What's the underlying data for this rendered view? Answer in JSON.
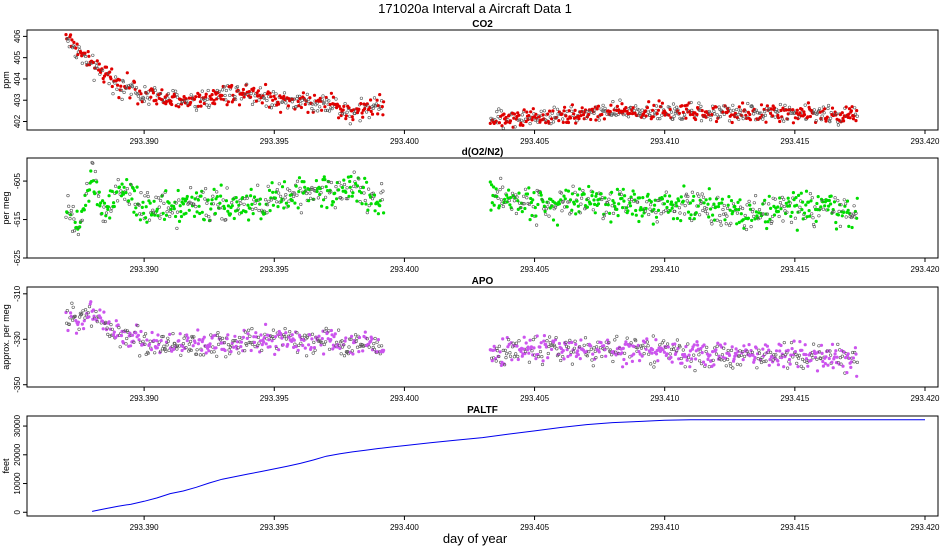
{
  "figure": {
    "title": "171020a   Interval a Aircraft Data 1",
    "xlabel": "day of year"
  },
  "chart_data": [
    {
      "type": "scatter",
      "title": "CO2",
      "ylabel": "ppm",
      "color": "#e00000",
      "xlim": [
        293.3855,
        293.4205
      ],
      "ylim": [
        401.6,
        406.3
      ],
      "xticks": [
        293.39,
        293.395,
        293.4,
        293.405,
        293.41,
        293.415,
        293.42
      ],
      "xtick_labels": [
        "293.390",
        "293.395",
        "293.400",
        "293.405",
        "293.410",
        "293.415",
        "293.420"
      ],
      "yticks": [
        402,
        403,
        404,
        405,
        406
      ],
      "ytick_labels": [
        "402",
        "403",
        "404",
        "405",
        "406"
      ],
      "segments": [
        {
          "x": [
            293.387,
            293.388,
            293.389,
            293.39,
            293.391,
            293.392,
            293.393,
            293.394,
            293.395,
            293.396,
            293.397,
            293.398,
            293.3992
          ],
          "y": [
            406.0,
            404.6,
            403.8,
            403.3,
            403.0,
            403.0,
            403.3,
            403.4,
            403.1,
            402.9,
            402.9,
            402.4,
            402.8
          ],
          "spread": 0.35
        },
        {
          "x": [
            293.4033,
            293.405,
            293.407,
            293.409,
            293.411,
            293.413,
            293.415,
            293.4174
          ],
          "y": [
            402.1,
            402.2,
            402.4,
            402.5,
            402.4,
            402.4,
            402.4,
            402.3
          ],
          "spread": 0.3
        }
      ]
    },
    {
      "type": "scatter",
      "title": "d(O2/N2)",
      "ylabel": "per meg",
      "color": "#00dd00",
      "xlim": [
        293.3855,
        293.4205
      ],
      "ylim": [
        -625,
        -599
      ],
      "xticks": [
        293.39,
        293.395,
        293.4,
        293.405,
        293.41,
        293.415,
        293.42
      ],
      "xtick_labels": [
        "293.390",
        "293.395",
        "293.400",
        "293.405",
        "293.410",
        "293.415",
        "293.420"
      ],
      "yticks": [
        -625,
        -615,
        -605
      ],
      "ytick_labels": [
        "-625",
        "-615",
        "-605"
      ],
      "segments": [
        {
          "x": [
            293.387,
            293.3875,
            293.388,
            293.3885,
            293.389,
            293.39,
            293.392,
            293.394,
            293.396,
            293.398,
            293.3992
          ],
          "y": [
            -612,
            -618,
            -603,
            -615,
            -607,
            -612,
            -611,
            -612,
            -608,
            -607,
            -611
          ],
          "spread": 3.0
        },
        {
          "x": [
            293.4033,
            293.405,
            293.407,
            293.409,
            293.411,
            293.413,
            293.415,
            293.4174
          ],
          "y": [
            -609,
            -611,
            -610,
            -611,
            -611,
            -613,
            -612,
            -613
          ],
          "spread": 3.0
        }
      ]
    },
    {
      "type": "scatter",
      "title": "APO",
      "ylabel": "approx. per meg",
      "color": "#cc55ee",
      "xlim": [
        293.3855,
        293.4205
      ],
      "ylim": [
        -351,
        -307
      ],
      "xticks": [
        293.39,
        293.395,
        293.4,
        293.405,
        293.41,
        293.415,
        293.42
      ],
      "xtick_labels": [
        "293.390",
        "293.395",
        "293.400",
        "293.405",
        "293.410",
        "293.415",
        "293.420"
      ],
      "yticks": [
        -350,
        -330,
        -310
      ],
      "ytick_labels": [
        "-350",
        "-330",
        "-310"
      ],
      "segments": [
        {
          "x": [
            293.387,
            293.388,
            293.389,
            293.39,
            293.392,
            293.394,
            293.396,
            293.398,
            293.3992
          ],
          "y": [
            -322,
            -318,
            -328,
            -331,
            -333,
            -331,
            -330,
            -332,
            -333
          ],
          "spread": 4.0
        },
        {
          "x": [
            293.4033,
            293.405,
            293.407,
            293.409,
            293.411,
            293.413,
            293.415,
            293.4174
          ],
          "y": [
            -336,
            -334,
            -335,
            -334,
            -337,
            -337,
            -337,
            -339
          ],
          "spread": 4.0
        }
      ]
    },
    {
      "type": "line",
      "title": "PALTF",
      "ylabel": "feet",
      "color": "#0000ee",
      "xlim": [
        293.3855,
        293.4205
      ],
      "ylim": [
        -1300,
        33500
      ],
      "xticks": [
        293.39,
        293.395,
        293.4,
        293.405,
        293.41,
        293.415,
        293.42
      ],
      "xtick_labels": [
        "293.390",
        "293.395",
        "293.400",
        "293.405",
        "293.410",
        "293.415",
        "293.420"
      ],
      "yticks": [
        0,
        10000,
        20000,
        30000
      ],
      "ytick_labels": [
        "0",
        "10000",
        "20000",
        "30000"
      ],
      "x": [
        293.388,
        293.3885,
        293.389,
        293.3895,
        293.39,
        293.3905,
        293.391,
        293.3915,
        293.392,
        293.3925,
        293.393,
        293.3935,
        293.394,
        293.3945,
        293.395,
        293.3955,
        293.396,
        293.3965,
        293.397,
        293.3975,
        293.398,
        293.3985,
        293.399,
        293.3995,
        293.4,
        293.401,
        293.402,
        293.403,
        293.404,
        293.405,
        293.406,
        293.407,
        293.408,
        293.409,
        293.41,
        293.4105,
        293.411,
        293.412,
        293.413,
        293.414,
        293.415,
        293.416,
        293.417,
        293.418,
        293.419,
        293.42
      ],
      "y": [
        300,
        1200,
        2100,
        2800,
        3800,
        5000,
        6500,
        7400,
        8700,
        10200,
        11500,
        12400,
        13300,
        14200,
        15100,
        16000,
        17000,
        18200,
        19500,
        20300,
        21000,
        21600,
        22200,
        22700,
        23200,
        24200,
        25100,
        26000,
        27200,
        28300,
        29500,
        30500,
        31200,
        31600,
        32000,
        32100,
        32200,
        32200,
        32200,
        32200,
        32200,
        32200,
        32200,
        32200,
        32200,
        32200
      ]
    }
  ]
}
